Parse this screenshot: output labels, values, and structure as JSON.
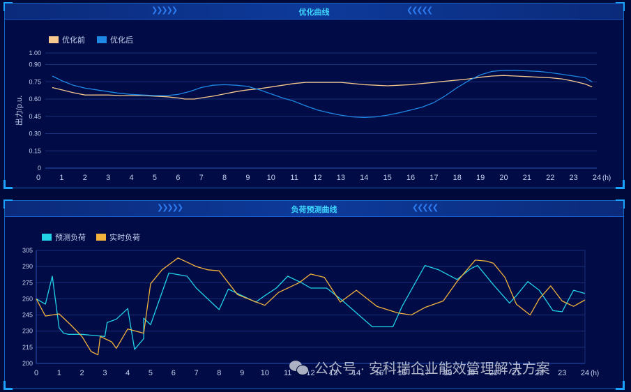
{
  "colors": {
    "bg": "#010b45",
    "grid": "#1c2f7a",
    "axis": "#2b52b8",
    "tick_text": "#c8d2f0",
    "before": "#f6c98e",
    "after": "#1e88e5",
    "forecast": "#22d3e8",
    "realtime": "#f2b33d"
  },
  "chart_data": [
    {
      "type": "line",
      "title": "优化曲线",
      "ylabel": "出力/p.u.",
      "x_unit": "(h)",
      "xlim": [
        0,
        24
      ],
      "ylim": [
        0,
        1.0
      ],
      "x_ticks": [
        "0",
        "1",
        "2",
        "3",
        "4",
        "5",
        "6",
        "7",
        "8",
        "9",
        "10",
        "11",
        "12",
        "13",
        "14",
        "15",
        "16",
        "17",
        "18",
        "19",
        "20",
        "21",
        "22",
        "23",
        "24"
      ],
      "y_ticks": [
        "0",
        "0.15",
        "0.30",
        "0.45",
        "0.60",
        "0.75",
        "0.90",
        "1.00"
      ],
      "y_tick_values": [
        0,
        0.15,
        0.3,
        0.45,
        0.6,
        0.75,
        0.9,
        1.0
      ],
      "legend_position": "top-left",
      "series": [
        {
          "name": "优化前",
          "color_key": "before",
          "x": [
            0.6,
            1,
            1.5,
            2,
            2.5,
            3,
            3.5,
            4,
            4.5,
            5,
            5.5,
            6,
            6.3,
            6.7,
            7,
            7.5,
            8,
            8.5,
            9,
            9.5,
            10,
            10.5,
            11,
            11.5,
            12,
            12.5,
            13,
            13.5,
            14,
            14.5,
            15,
            15.5,
            16,
            16.5,
            17,
            17.5,
            18,
            18.5,
            19,
            19.5,
            20,
            20.5,
            21,
            21.5,
            22,
            22.5,
            23,
            23.5,
            23.8
          ],
          "y": [
            0.7,
            0.68,
            0.655,
            0.635,
            0.635,
            0.635,
            0.63,
            0.63,
            0.63,
            0.625,
            0.62,
            0.61,
            0.6,
            0.6,
            0.61,
            0.625,
            0.645,
            0.665,
            0.68,
            0.69,
            0.705,
            0.72,
            0.735,
            0.745,
            0.745,
            0.745,
            0.745,
            0.735,
            0.725,
            0.72,
            0.715,
            0.72,
            0.725,
            0.735,
            0.745,
            0.755,
            0.765,
            0.775,
            0.79,
            0.8,
            0.805,
            0.8,
            0.795,
            0.79,
            0.785,
            0.775,
            0.755,
            0.73,
            0.705
          ]
        },
        {
          "name": "优化后",
          "color_key": "after",
          "x": [
            0.6,
            1,
            1.5,
            2,
            2.5,
            3,
            3.5,
            4,
            4.5,
            5,
            5.5,
            6,
            6.5,
            7,
            7.5,
            8,
            8.5,
            9,
            9.5,
            10,
            10.5,
            11,
            11.5,
            12,
            12.5,
            13,
            13.5,
            14,
            14.5,
            15,
            15.5,
            16,
            16.5,
            17,
            17.5,
            18,
            18.5,
            19,
            19.5,
            20,
            20.5,
            21,
            21.5,
            22,
            22.5,
            23,
            23.5,
            23.8
          ],
          "y": [
            0.8,
            0.76,
            0.72,
            0.695,
            0.68,
            0.665,
            0.65,
            0.64,
            0.635,
            0.63,
            0.63,
            0.64,
            0.665,
            0.7,
            0.72,
            0.725,
            0.72,
            0.71,
            0.68,
            0.645,
            0.61,
            0.58,
            0.54,
            0.505,
            0.48,
            0.46,
            0.445,
            0.44,
            0.445,
            0.46,
            0.48,
            0.505,
            0.53,
            0.57,
            0.63,
            0.7,
            0.76,
            0.81,
            0.84,
            0.85,
            0.85,
            0.845,
            0.84,
            0.83,
            0.815,
            0.8,
            0.785,
            0.75
          ]
        }
      ]
    },
    {
      "type": "line",
      "title": "负荷预测曲线",
      "ylabel": "",
      "x_unit": "(h)",
      "xlim": [
        0,
        24
      ],
      "ylim": [
        200,
        305
      ],
      "x_ticks": [
        "0",
        "1",
        "2",
        "3",
        "4",
        "5",
        "6",
        "7",
        "8",
        "9",
        "10",
        "11",
        "12",
        "13",
        "14",
        "15",
        "16",
        "17",
        "18",
        "19",
        "20",
        "21",
        "22",
        "23",
        "24"
      ],
      "y_ticks": [
        "200",
        "215",
        "230",
        "245",
        "260",
        "275",
        "290",
        "305"
      ],
      "y_tick_values": [
        200,
        215,
        230,
        245,
        260,
        275,
        290,
        305
      ],
      "legend_position": "top-left",
      "series": [
        {
          "name": "预测负荷",
          "color_key": "forecast",
          "x": [
            0,
            0.4,
            0.7,
            1,
            1.2,
            1.4,
            2,
            2.5,
            3,
            3,
            3.1,
            3.5,
            4,
            4.3,
            4.7,
            4.7,
            5,
            5.8,
            6.6,
            7,
            8,
            8.4,
            9,
            9.6,
            10,
            10.5,
            11,
            11.6,
            12,
            12.7,
            13.3,
            14,
            14.7,
            15.6,
            16,
            17,
            17.6,
            18.4,
            19,
            19.3,
            20,
            20.7,
            21,
            21.5,
            22,
            22.6,
            23,
            23.5,
            24
          ],
          "y": [
            260,
            255,
            281,
            233,
            228,
            227,
            227,
            226,
            225,
            225,
            238,
            241,
            251,
            213,
            223,
            242,
            236,
            284,
            281,
            270,
            250,
            269,
            263,
            257,
            263,
            270,
            281,
            275,
            270,
            270,
            260,
            247,
            234,
            234,
            253,
            291,
            287,
            278,
            288,
            291,
            273,
            256,
            263,
            276,
            268,
            249,
            248,
            268,
            265
          ]
        },
        {
          "name": "实时负荷",
          "color_key": "realtime",
          "x": [
            0,
            0.4,
            1,
            1.5,
            2,
            2.4,
            2.7,
            2.8,
            3.3,
            3.5,
            4,
            4.7,
            5,
            5.5,
            6.2,
            7,
            7.5,
            8,
            8.8,
            9.5,
            10,
            10.6,
            11.5,
            12,
            12.6,
            13.3,
            14,
            14.9,
            15.8,
            16.4,
            17,
            17.8,
            18.4,
            19.2,
            19.7,
            20,
            20.5,
            21,
            21.6,
            22,
            22.5,
            23,
            23.5,
            24
          ],
          "y": [
            260,
            244,
            246,
            236,
            225,
            211,
            208,
            225,
            220,
            214,
            232,
            228,
            274,
            287,
            298,
            290,
            287,
            286,
            264,
            258,
            254,
            266,
            275,
            283,
            280,
            257,
            268,
            253,
            247,
            245,
            252,
            258,
            276,
            296,
            295,
            293,
            280,
            255,
            245,
            260,
            272,
            258,
            253,
            259
          ]
        }
      ]
    }
  ],
  "watermark": {
    "icon": "wechat-icon",
    "text": "公众号 · 安科瑞企业能效管理解决方案"
  }
}
